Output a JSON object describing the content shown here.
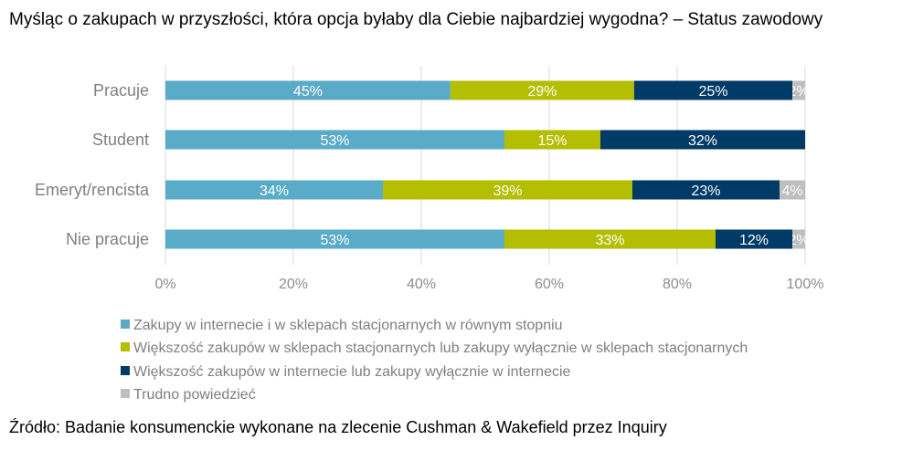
{
  "chart_data": {
    "type": "bar",
    "orientation": "horizontal",
    "stacked": true,
    "title": "Myśląc o zakupach w przyszłości, która opcja byłaby dla Ciebie najbardziej wygodna? – Status zawodowy",
    "categories": [
      "Pracuje",
      "Student",
      "Emeryt/rencista",
      "Nie pracuje"
    ],
    "series": [
      {
        "name": "Zakupy w internecie i w sklepach stacjonarnych w równym stopniu",
        "color": "#5aabc8",
        "values": [
          45,
          53,
          34,
          53
        ]
      },
      {
        "name": "Większość zakupów w sklepach stacjonarnych lub zakupy wyłącznie w sklepach stacjonarnych",
        "color": "#b3be00",
        "values": [
          29,
          15,
          39,
          33
        ]
      },
      {
        "name": "Większość zakupów w internecie lub zakupy wyłącznie w internecie",
        "color": "#003a67",
        "values": [
          25,
          32,
          23,
          12
        ]
      },
      {
        "name": "Trudno powiedzieć",
        "color": "#bfbfbf",
        "values": [
          2,
          0,
          4,
          2
        ]
      }
    ],
    "xlim": [
      0,
      100
    ],
    "xticks": [
      "0%",
      "20%",
      "40%",
      "60%",
      "80%",
      "100%"
    ],
    "grid": true,
    "legend": "bottom"
  },
  "source": "Źródło: Badanie konsumenckie wykonane na zlecenie Cushman & Wakefield przez Inquiry"
}
